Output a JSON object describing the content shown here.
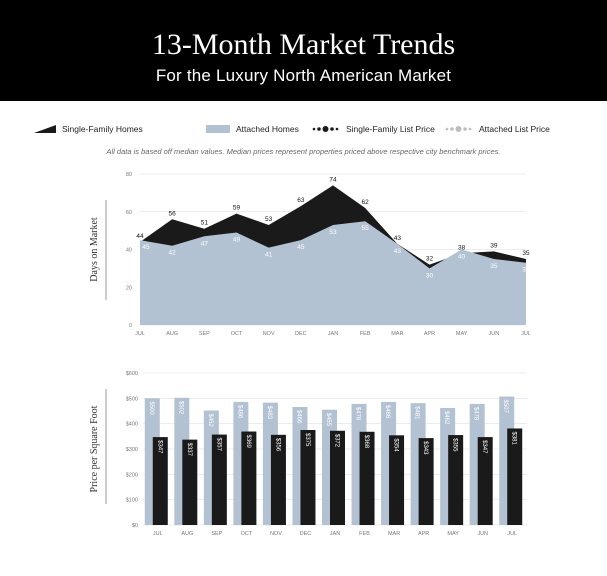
{
  "header": {
    "title": "13-Month Market Trends",
    "subtitle": "For the Luxury North American Market"
  },
  "legend": {
    "items": [
      {
        "label": "Single-Family Homes",
        "symbol": "black-wedge"
      },
      {
        "label": "Attached Homes",
        "symbol": "blue-rect"
      },
      {
        "label": "Single-Family List Price",
        "symbol": "black-dots"
      },
      {
        "label": "Attached List Price",
        "symbol": "grey-dots"
      }
    ]
  },
  "note": "All data is based off median values. Median prices represent properties priced above respective city benchmark prices.",
  "colors": {
    "single_family": "#1a1a1a",
    "attached": "#b3c2d2",
    "header_bg": "#000000"
  },
  "chart_data": [
    {
      "type": "area",
      "ylabel": "Days on Market",
      "categories": [
        "JUL",
        "AUG",
        "SEP",
        "OCT",
        "NOV",
        "DEC",
        "JAN",
        "FEB",
        "MAR",
        "APR",
        "MAY",
        "JUN",
        "JUL"
      ],
      "ylim": [
        0,
        80
      ],
      "yticks": [
        "0",
        "20",
        "40",
        "60",
        "80"
      ],
      "grid": true,
      "series": [
        {
          "name": "Single-Family Homes",
          "values": [
            44,
            56,
            51,
            59,
            53,
            63,
            74,
            62,
            43,
            32,
            38,
            39,
            35
          ]
        },
        {
          "name": "Attached Homes",
          "values": [
            45,
            42,
            47,
            49,
            41,
            45,
            53,
            55,
            43,
            30,
            40,
            35,
            33
          ]
        }
      ]
    },
    {
      "type": "bar",
      "ylabel": "Price per Square Foot",
      "categories": [
        "JUL",
        "AUG",
        "SEP",
        "OCT",
        "NOV",
        "DEC",
        "JAN",
        "FEB",
        "MAR",
        "APR",
        "MAY",
        "JUN",
        "JUL"
      ],
      "ylim": [
        0,
        600
      ],
      "yticks": [
        "$0",
        "$100",
        "$200",
        "$300",
        "$400",
        "$500",
        "$600"
      ],
      "grid": true,
      "series": [
        {
          "name": "Attached Homes",
          "values": [
            500,
            502,
            452,
            486,
            483,
            466,
            455,
            478,
            486,
            481,
            462,
            478,
            507
          ],
          "labels": [
            "$500",
            "$502",
            "$452",
            "$486",
            "$483",
            "$466",
            "$455",
            "$478",
            "$486",
            "$481",
            "$462",
            "$478",
            "$507"
          ]
        },
        {
          "name": "Single-Family Homes",
          "values": [
            347,
            337,
            357,
            369,
            356,
            375,
            372,
            368,
            354,
            343,
            355,
            347,
            381
          ],
          "labels": [
            "$347",
            "$337",
            "$357",
            "$369",
            "$356",
            "$375",
            "$372",
            "$368",
            "$354",
            "$343",
            "$355",
            "$347",
            "$381"
          ]
        }
      ]
    }
  ]
}
